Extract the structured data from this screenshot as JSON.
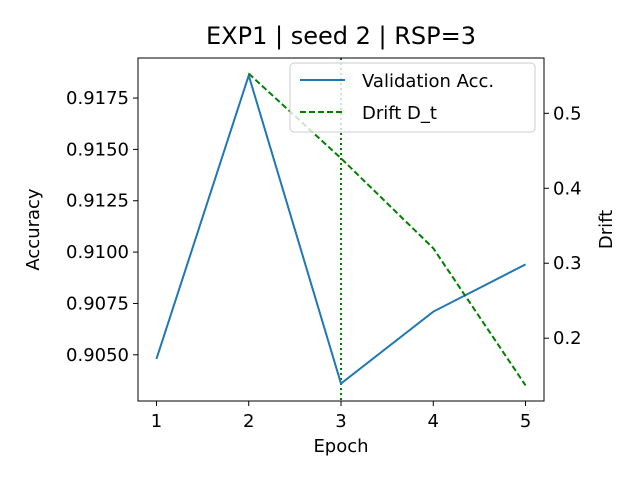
{
  "chart_data": {
    "type": "line",
    "title": "EXP1 | seed 2 | RSP=3",
    "xlabel": "Epoch",
    "ylabel": "Accuracy",
    "y2label": "Drift",
    "x": [
      1,
      2,
      3,
      4,
      5
    ],
    "xticks": [
      "1",
      "2",
      "3",
      "4",
      "5"
    ],
    "xlim": [
      0.8,
      5.2
    ],
    "ylim": [
      0.90275,
      0.91945
    ],
    "y2lim": [
      0.1162,
      0.5738
    ],
    "yticks": [
      "0.9050",
      "0.9075",
      "0.9100",
      "0.9125",
      "0.9150",
      "0.9175"
    ],
    "y2ticks": [
      "0.2",
      "0.3",
      "0.4",
      "0.5"
    ],
    "series": [
      {
        "name": "Validation Acc.",
        "axis": "left",
        "color": "#1f77b4",
        "style": "solid",
        "x": [
          1,
          2,
          3,
          4,
          5
        ],
        "values": [
          0.9048,
          0.9186,
          0.9036,
          0.9071,
          0.9094
        ]
      },
      {
        "name": "Drift D_t",
        "axis": "right",
        "color": "#008000",
        "style": "dashed",
        "x": [
          2,
          3,
          4,
          5
        ],
        "values": [
          0.553,
          0.44,
          0.32,
          0.137
        ]
      }
    ],
    "vline": {
      "x": 3,
      "color": "#008000",
      "style": "dotted"
    },
    "legend_position": "top-right",
    "grid": false
  }
}
